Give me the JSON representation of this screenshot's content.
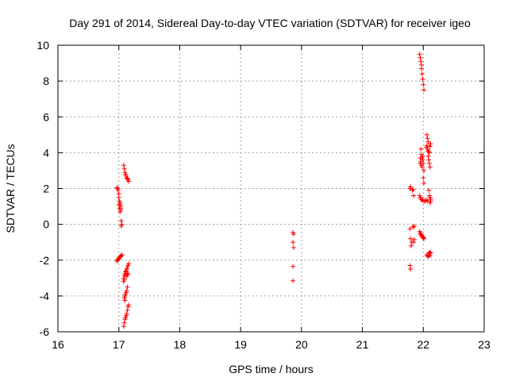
{
  "chart_data": {
    "type": "scatter",
    "title": "Day 291 of 2014, Sidereal Day-to-day VTEC variation (SDTVAR) for receiver igeo",
    "xlabel": "GPS time / hours",
    "ylabel": "SDTVAR / TECUs",
    "xlim": [
      16,
      23
    ],
    "ylim": [
      -6,
      10
    ],
    "xticks": [
      16,
      17,
      18,
      19,
      20,
      21,
      22,
      23
    ],
    "yticks": [
      -6,
      -4,
      -2,
      0,
      2,
      4,
      6,
      8,
      10
    ],
    "grid": true,
    "marker": "+",
    "colors": {
      "series": "#ff0000",
      "grid": "#a0a0a0",
      "axis": "#000000"
    },
    "series": [
      {
        "name": "SDTVAR",
        "points": [
          [
            16.97,
            2.05
          ],
          [
            16.98,
            2.0
          ],
          [
            16.99,
            1.9
          ],
          [
            17.0,
            1.7
          ],
          [
            17.0,
            1.5
          ],
          [
            17.01,
            1.3
          ],
          [
            17.02,
            1.2
          ],
          [
            17.02,
            1.1
          ],
          [
            17.03,
            1.0
          ],
          [
            17.03,
            0.9
          ],
          [
            17.03,
            0.8
          ],
          [
            17.02,
            0.7
          ],
          [
            17.01,
            0.9
          ],
          [
            17.0,
            1.1
          ],
          [
            17.04,
            0.2
          ],
          [
            17.05,
            0.0
          ],
          [
            17.04,
            -0.1
          ],
          [
            16.97,
            -2.05
          ],
          [
            16.98,
            -2.0
          ],
          [
            16.99,
            -1.95
          ],
          [
            17.0,
            -1.9
          ],
          [
            17.01,
            -1.85
          ],
          [
            17.02,
            -1.8
          ],
          [
            17.03,
            -1.8
          ],
          [
            17.04,
            -1.75
          ],
          [
            17.05,
            -1.7
          ],
          [
            17.08,
            3.3
          ],
          [
            17.09,
            3.1
          ],
          [
            17.1,
            2.9
          ],
          [
            17.11,
            2.8
          ],
          [
            17.12,
            2.7
          ],
          [
            17.13,
            2.6
          ],
          [
            17.14,
            2.55
          ],
          [
            17.15,
            2.5
          ],
          [
            17.16,
            2.4
          ],
          [
            17.16,
            -2.2
          ],
          [
            17.15,
            -2.3
          ],
          [
            17.14,
            -2.4
          ],
          [
            17.13,
            -2.5
          ],
          [
            17.12,
            -2.6
          ],
          [
            17.11,
            -2.65
          ],
          [
            17.1,
            -2.75
          ],
          [
            17.09,
            -2.85
          ],
          [
            17.08,
            -3.0
          ],
          [
            17.09,
            -3.1
          ],
          [
            17.08,
            -3.2
          ],
          [
            17.13,
            -2.9
          ],
          [
            17.14,
            -2.8
          ],
          [
            17.15,
            -2.75
          ],
          [
            17.14,
            -3.5
          ],
          [
            17.13,
            -3.7
          ],
          [
            17.12,
            -3.8
          ],
          [
            17.11,
            -3.9
          ],
          [
            17.1,
            -4.0
          ],
          [
            17.09,
            -4.1
          ],
          [
            17.1,
            -4.25
          ],
          [
            17.16,
            -4.5
          ],
          [
            17.15,
            -4.6
          ],
          [
            17.14,
            -4.8
          ],
          [
            17.13,
            -5.0
          ],
          [
            17.12,
            -5.1
          ],
          [
            17.11,
            -5.2
          ],
          [
            17.1,
            -5.3
          ],
          [
            17.09,
            -5.5
          ],
          [
            17.08,
            -5.7
          ],
          [
            19.86,
            -0.45
          ],
          [
            19.87,
            -0.55
          ],
          [
            19.86,
            -1.0
          ],
          [
            19.87,
            -1.3
          ],
          [
            19.86,
            -2.35
          ],
          [
            19.86,
            -3.15
          ],
          [
            21.78,
            2.0
          ],
          [
            21.79,
            2.1
          ],
          [
            21.82,
            1.9
          ],
          [
            21.84,
            1.6
          ],
          [
            21.83,
            1.95
          ],
          [
            21.78,
            -0.25
          ],
          [
            21.79,
            -0.8
          ],
          [
            21.81,
            -1.0
          ],
          [
            21.8,
            -1.2
          ],
          [
            21.84,
            -1.0
          ],
          [
            21.85,
            -0.85
          ],
          [
            21.85,
            -0.1
          ],
          [
            21.83,
            -0.15
          ],
          [
            21.78,
            -2.3
          ],
          [
            21.79,
            -2.5
          ],
          [
            21.94,
            9.5
          ],
          [
            21.95,
            9.3
          ],
          [
            21.96,
            9.1
          ],
          [
            21.97,
            8.9
          ],
          [
            21.97,
            8.7
          ],
          [
            21.98,
            8.4
          ],
          [
            21.99,
            8.1
          ],
          [
            22.0,
            7.8
          ],
          [
            22.01,
            7.5
          ],
          [
            21.96,
            4.2
          ],
          [
            21.97,
            3.9
          ],
          [
            21.98,
            3.7
          ],
          [
            21.96,
            3.5
          ],
          [
            21.95,
            3.4
          ],
          [
            21.97,
            3.3
          ],
          [
            21.98,
            3.2
          ],
          [
            21.99,
            3.6
          ],
          [
            22.0,
            3.4
          ],
          [
            22.01,
            3.0
          ],
          [
            22.0,
            2.6
          ],
          [
            22.01,
            2.3
          ],
          [
            21.99,
            3.8
          ],
          [
            21.95,
            3.7
          ],
          [
            21.94,
            1.6
          ],
          [
            21.95,
            1.5
          ],
          [
            21.96,
            1.4
          ],
          [
            21.97,
            1.4
          ],
          [
            21.99,
            1.35
          ],
          [
            22.01,
            1.3
          ],
          [
            22.03,
            1.3
          ],
          [
            22.05,
            1.35
          ],
          [
            22.07,
            1.3
          ],
          [
            21.94,
            -0.4
          ],
          [
            21.95,
            -0.5
          ],
          [
            21.96,
            -0.55
          ],
          [
            21.97,
            -0.6
          ],
          [
            21.98,
            -0.65
          ],
          [
            21.99,
            -0.7
          ],
          [
            22.0,
            -0.75
          ],
          [
            22.01,
            -0.8
          ],
          [
            22.06,
            5.0
          ],
          [
            22.07,
            4.8
          ],
          [
            22.08,
            4.6
          ],
          [
            22.06,
            4.4
          ],
          [
            22.05,
            4.3
          ],
          [
            22.07,
            4.2
          ],
          [
            22.08,
            4.1
          ],
          [
            22.09,
            4.05
          ],
          [
            22.1,
            4.0
          ],
          [
            22.11,
            4.35
          ],
          [
            22.12,
            4.5
          ],
          [
            22.08,
            3.8
          ],
          [
            22.09,
            3.6
          ],
          [
            22.1,
            3.4
          ],
          [
            22.11,
            3.2
          ],
          [
            22.09,
            1.9
          ],
          [
            22.1,
            1.6
          ],
          [
            22.11,
            1.5
          ],
          [
            22.12,
            1.4
          ],
          [
            22.12,
            1.3
          ],
          [
            22.11,
            1.2
          ],
          [
            22.06,
            -1.7
          ],
          [
            22.07,
            -1.75
          ],
          [
            22.08,
            -1.8
          ],
          [
            22.09,
            -1.7
          ],
          [
            22.1,
            -1.6
          ],
          [
            22.11,
            -1.55
          ],
          [
            22.12,
            -1.6
          ],
          [
            22.11,
            -1.75
          ]
        ]
      }
    ]
  }
}
